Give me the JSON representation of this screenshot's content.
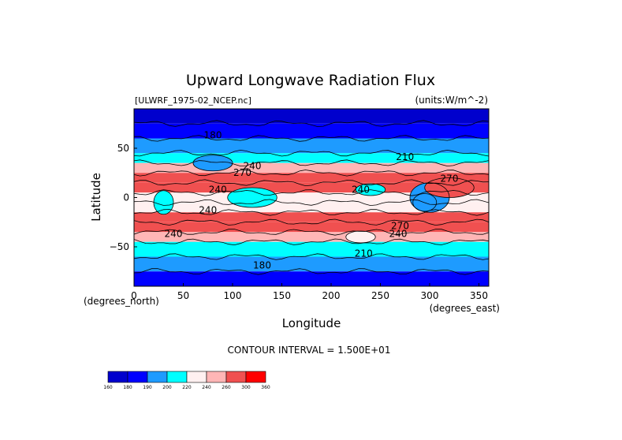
{
  "chart_data": {
    "type": "heatmap",
    "title": "Upward Longwave Radiation Flux",
    "source_label": "[ULWRF_1975-02_NCEP.nc]",
    "units_label": "(units:W/m^-2)",
    "xlabel": "Longitude",
    "ylabel": "Latitude",
    "x_unit_label": "(degrees_east)",
    "y_unit_label": "(degrees_north)",
    "xlim": [
      0,
      360
    ],
    "ylim": [
      -90,
      90
    ],
    "x_ticks": [
      0,
      50,
      100,
      150,
      200,
      250,
      300,
      350
    ],
    "y_ticks": [
      50,
      0,
      -50
    ],
    "x_tick_labels": [
      "0",
      "50",
      "100",
      "150",
      "200",
      "250",
      "300",
      "350"
    ],
    "y_tick_labels": [
      "50",
      "0",
      "−50"
    ],
    "contour_interval": "CONTOUR INTERVAL = 1.500E+01",
    "contour_labels": [
      {
        "text": "240",
        "lon": 120,
        "lat": 29
      },
      {
        "text": "270",
        "lon": 110,
        "lat": 22
      },
      {
        "text": "240",
        "lon": 85,
        "lat": 5
      },
      {
        "text": "240",
        "lon": 75,
        "lat": -16
      },
      {
        "text": "240",
        "lon": 40,
        "lat": -40
      },
      {
        "text": "270",
        "lon": 270,
        "lat": -32
      },
      {
        "text": "240",
        "lon": 268,
        "lat": -40
      },
      {
        "text": "210",
        "lon": 233,
        "lat": -60
      },
      {
        "text": "180",
        "lon": 130,
        "lat": -72
      },
      {
        "text": "240",
        "lon": 230,
        "lat": 5
      },
      {
        "text": "270",
        "lon": 320,
        "lat": 16
      },
      {
        "text": "210",
        "lon": 275,
        "lat": 38
      },
      {
        "text": "180",
        "lon": 80,
        "lat": 60
      }
    ],
    "colorbar": {
      "boundaries": [
        "160",
        "180",
        "190",
        "200",
        "220",
        "240",
        "260",
        "300",
        "360"
      ],
      "colors": [
        "#0000cd",
        "#0000ff",
        "#1e9bff",
        "#00ffff",
        "#fff0f0",
        "#ffb6b6",
        "#f05050",
        "#ff0000"
      ]
    },
    "fill_levels": [
      "#0000cd",
      "#0000ff",
      "#1e9bff",
      "#00ffff",
      "#fff0f0",
      "#ffb6b6",
      "#f05050",
      "#ff0000"
    ],
    "field_zonal": [
      {
        "lat": 90,
        "level": 0
      },
      {
        "lat": 75,
        "level": 1
      },
      {
        "lat": 60,
        "level": 2
      },
      {
        "lat": 45,
        "level": 3
      },
      {
        "lat": 35,
        "level": 5
      },
      {
        "lat": 25,
        "level": 6
      },
      {
        "lat": 15,
        "level": 6
      },
      {
        "lat": 5,
        "level": 4
      },
      {
        "lat": -5,
        "level": 4
      },
      {
        "lat": -15,
        "level": 6
      },
      {
        "lat": -25,
        "level": 6
      },
      {
        "lat": -35,
        "level": 5
      },
      {
        "lat": -45,
        "level": 3
      },
      {
        "lat": -60,
        "level": 2
      },
      {
        "lat": -75,
        "level": 1
      },
      {
        "lat": -90,
        "level": 0
      }
    ],
    "anomalies": [
      {
        "lon": 295,
        "lat": -5,
        "r_lon": 12,
        "r_lat": 9,
        "level": 0
      },
      {
        "lon": 300,
        "lat": 0,
        "r_lon": 20,
        "r_lat": 15,
        "level": 2
      },
      {
        "lon": 120,
        "lat": 0,
        "r_lon": 25,
        "r_lat": 10,
        "level": 3
      },
      {
        "lon": 30,
        "lat": -5,
        "r_lon": 10,
        "r_lat": 12,
        "level": 3
      },
      {
        "lon": 240,
        "lat": 8,
        "r_lon": 15,
        "r_lat": 6,
        "level": 3
      },
      {
        "lon": 320,
        "lat": 10,
        "r_lon": 25,
        "r_lat": 10,
        "level": 6
      },
      {
        "lon": 80,
        "lat": 35,
        "r_lon": 20,
        "r_lat": 8,
        "level": 2
      },
      {
        "lon": 230,
        "lat": -40,
        "r_lon": 15,
        "r_lat": 6,
        "level": 4
      }
    ]
  }
}
